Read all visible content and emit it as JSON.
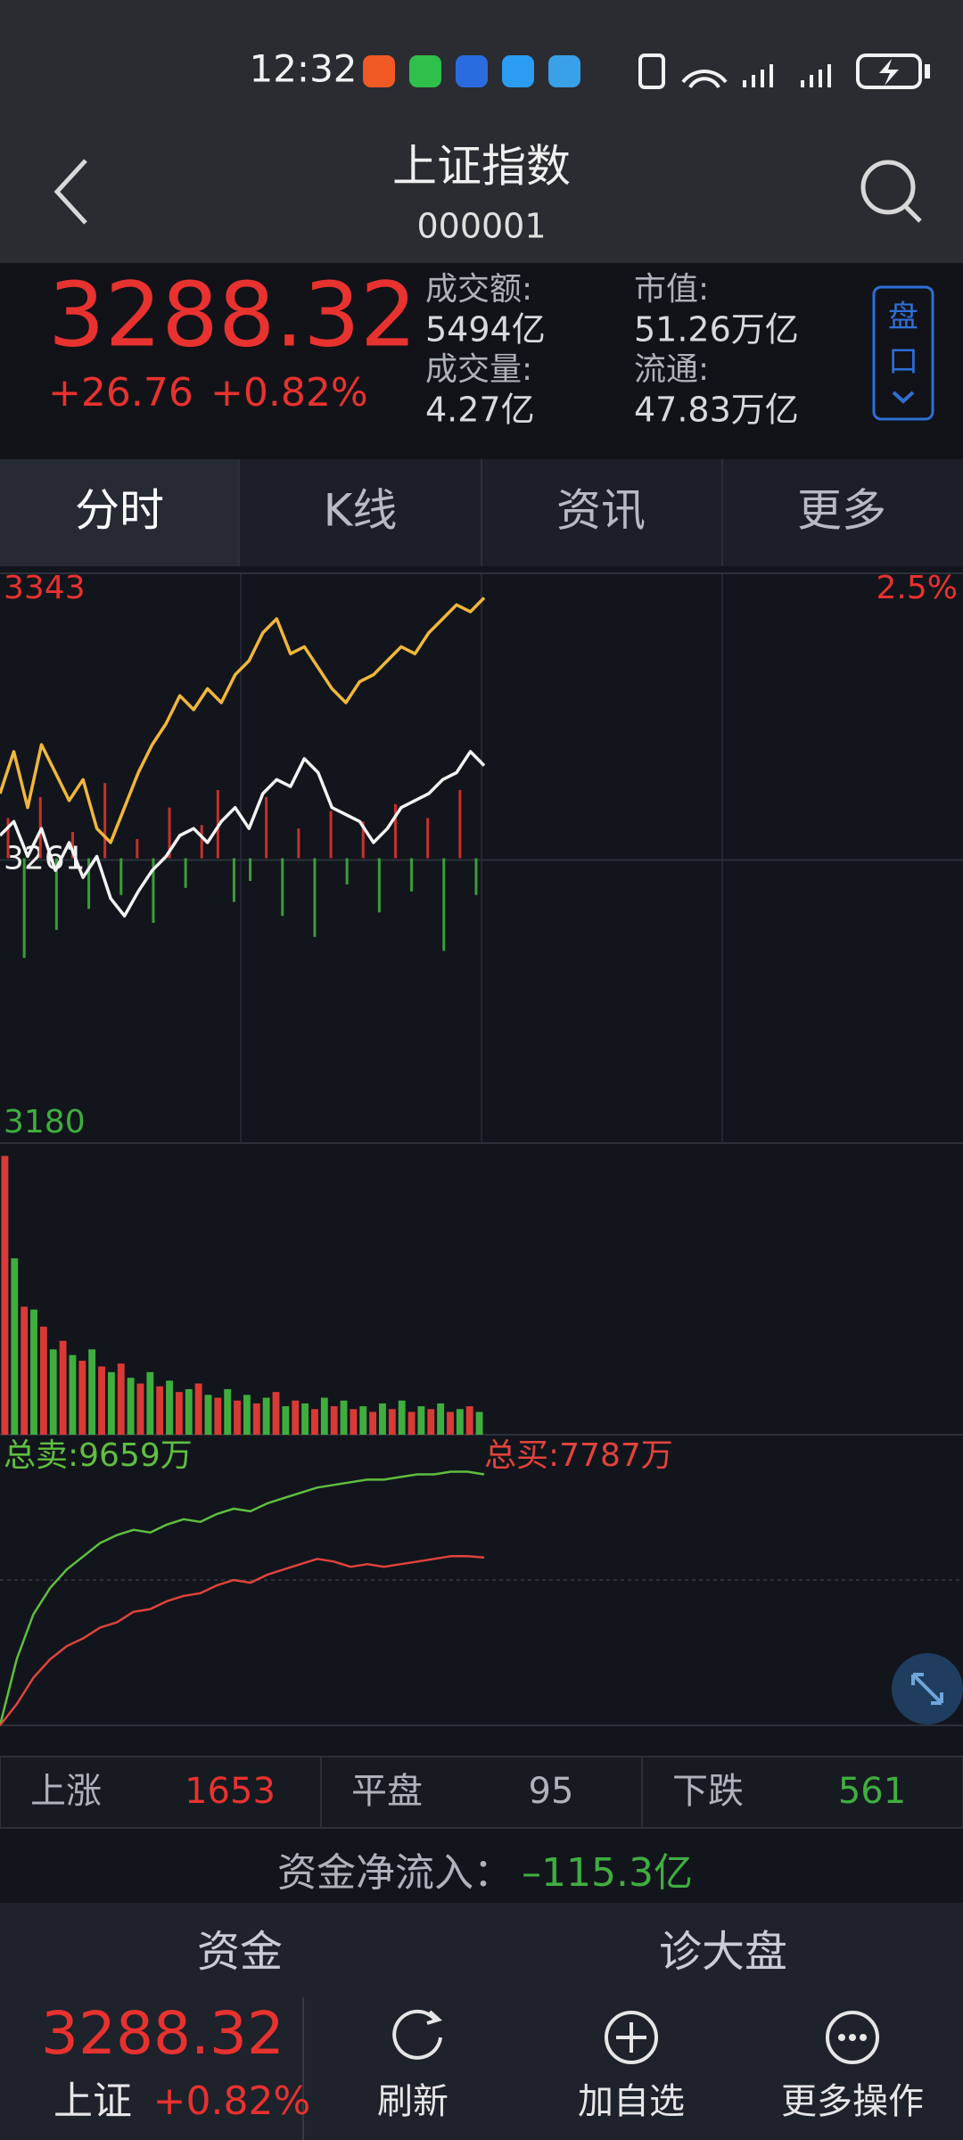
{
  "status_bar": {
    "time": "12:32"
  },
  "header": {
    "title": "上证指数",
    "code": "000001"
  },
  "quote": {
    "price": "3288.32",
    "change": "+26.76",
    "change_pct": "+0.82%",
    "stats": [
      {
        "label": "成交额:",
        "value": "5494亿"
      },
      {
        "label": "成交量:",
        "value": "4.27亿"
      },
      {
        "label": "市值:",
        "value": "51.26万亿"
      },
      {
        "label": "流通:",
        "value": "47.83万亿"
      }
    ],
    "button": [
      "盘",
      "口"
    ]
  },
  "tabs": [
    "分时",
    "K线",
    "资讯",
    "更多"
  ],
  "chart_data": [
    {
      "type": "line",
      "ylim": [
        3180,
        3343
      ],
      "yticks": [
        3343,
        3261,
        3180
      ],
      "y2lim": [
        -2.5,
        2.5
      ],
      "y2ticks": [
        {
          "value": 2.5,
          "label": "2.5%"
        }
      ],
      "series": [
        {
          "color": "#f2b73a",
          "values": [
            3280,
            3292,
            3276,
            3294,
            3286,
            3278,
            3284,
            3270,
            3266,
            3276,
            3286,
            3294,
            3300,
            3308,
            3304,
            3310,
            3306,
            3314,
            3318,
            3326,
            3330,
            3320,
            3322,
            3316,
            3310,
            3306,
            3312,
            3314,
            3318,
            3322,
            3320,
            3326,
            3330,
            3334,
            3332,
            3336
          ]
        },
        {
          "color": "#f4f4f4",
          "values": [
            3268,
            3272,
            3262,
            3270,
            3258,
            3266,
            3256,
            3262,
            3250,
            3245,
            3252,
            3258,
            3262,
            3268,
            3270,
            3266,
            3272,
            3276,
            3270,
            3280,
            3284,
            3282,
            3290,
            3286,
            3276,
            3274,
            3272,
            3266,
            3270,
            3276,
            3278,
            3280,
            3284,
            3286,
            3292,
            3288
          ]
        }
      ],
      "bars": {
        "up_color": "#c8302e",
        "down_color": "#3d9b3d",
        "values": [
          3273,
          3233,
          3279,
          3241,
          3269,
          3247,
          3283,
          3251,
          3267,
          3243,
          3276,
          3253,
          3271,
          3281,
          3249,
          3255,
          3279,
          3245,
          3270,
          3239,
          3275,
          3254,
          3272,
          3246,
          3277,
          3252,
          3273,
          3235,
          3281,
          3251
        ]
      }
    },
    {
      "type": "bar",
      "ylim": [
        0,
        100
      ],
      "series": [
        {
          "color": "#d93a36",
          "values": [
            98,
            null,
            45,
            null,
            38,
            null,
            33,
            null,
            26,
            null,
            24,
            null,
            25,
            null,
            18,
            null,
            17,
            null,
            15,
            null,
            18,
            null,
            13,
            null,
            12,
            null,
            11,
            null,
            15,
            null,
            12,
            null,
            9,
            null,
            10,
            null,
            9,
            null,
            8,
            null,
            9,
            null,
            8,
            null,
            9,
            null,
            8,
            null,
            10,
            null
          ]
        },
        {
          "color": "#3fae3f",
          "values": [
            null,
            62,
            null,
            44,
            null,
            30,
            null,
            28,
            null,
            30,
            null,
            22,
            null,
            20,
            null,
            22,
            null,
            19,
            null,
            16,
            null,
            14,
            null,
            16,
            null,
            14,
            null,
            13,
            null,
            10,
            null,
            11,
            null,
            13,
            null,
            12,
            null,
            10,
            null,
            11,
            null,
            12,
            null,
            10,
            null,
            11,
            null,
            9,
            null,
            8
          ]
        }
      ]
    },
    {
      "type": "line",
      "ylim": [
        0,
        11000
      ],
      "series": [
        {
          "name": "总卖:9659万",
          "color": "#5fbf3f",
          "values": [
            0,
            2500,
            4200,
            5200,
            5900,
            6400,
            6900,
            7200,
            7400,
            7300,
            7600,
            7800,
            7700,
            8000,
            8200,
            8100,
            8400,
            8600,
            8800,
            9000,
            9100,
            9200,
            9300,
            9300,
            9400,
            9500,
            9500,
            9600,
            9600,
            9500
          ]
        },
        {
          "name": "总买:7787万",
          "color": "#e0433c",
          "values": [
            0,
            800,
            1800,
            2500,
            3000,
            3300,
            3700,
            3900,
            4300,
            4400,
            4700,
            4900,
            5000,
            5300,
            5500,
            5400,
            5700,
            5900,
            6100,
            6300,
            6200,
            6000,
            6100,
            6000,
            6100,
            6200,
            6300,
            6400,
            6400,
            6350
          ]
        }
      ]
    }
  ],
  "breadth": [
    {
      "label": "上涨",
      "value": 1653
    },
    {
      "label": "平盘",
      "value": 95
    },
    {
      "label": "下跌",
      "value": 561
    }
  ],
  "net_flow": {
    "label": "资金净流入：",
    "value": "–115.3亿"
  },
  "bottom": {
    "tabs": [
      "资金",
      "诊大盘"
    ],
    "price": "3288.32",
    "name": "上证",
    "change_pct": "+0.82%",
    "actions": [
      "刷新",
      "加自选",
      "更多操作"
    ]
  }
}
